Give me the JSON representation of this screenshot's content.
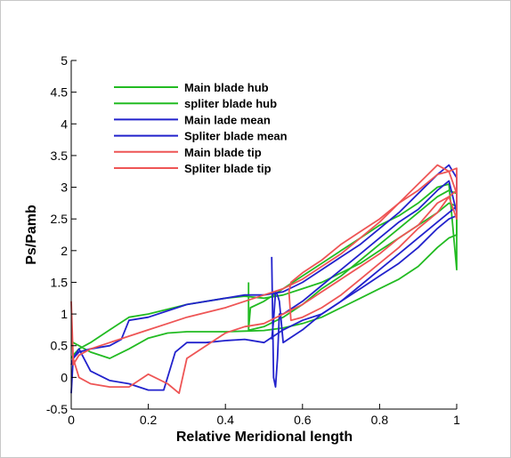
{
  "chart_data": {
    "type": "line",
    "title": "",
    "xlabel": "Relative Meridional length",
    "ylabel": "Ps/Pamb",
    "xlim": [
      0,
      1
    ],
    "ylim": [
      -0.5,
      5
    ],
    "xticks": [
      0,
      0.2,
      0.4,
      0.6,
      0.8,
      1
    ],
    "xtick_labels": [
      "0",
      "0.2",
      "0.4",
      "0.6",
      "0.8",
      "1"
    ],
    "yticks": [
      -0.5,
      0,
      0.5,
      1,
      1.5,
      2,
      2.5,
      3,
      3.5,
      4,
      4.5,
      5
    ],
    "ytick_labels": [
      "-0.5",
      "0",
      "0.5",
      "1",
      "1.5",
      "2",
      "2.5",
      "3",
      "3.5",
      "4",
      "4.5",
      "5"
    ],
    "grid": false,
    "legend": "top-left",
    "series": [
      {
        "name": "Main blade hub",
        "color": "#22bb22",
        "x": [
          0,
          0.005,
          0.02,
          0.05,
          0.1,
          0.15,
          0.2,
          0.25,
          0.3,
          0.35,
          0.4,
          0.45,
          0.5,
          0.55,
          0.6,
          0.65,
          0.7,
          0.75,
          0.8,
          0.85,
          0.9,
          0.95,
          0.98,
          1,
          1,
          0.98,
          0.95,
          0.9,
          0.85,
          0.8,
          0.75,
          0.7,
          0.65,
          0.6,
          0.55,
          0.5,
          0.45,
          0.4,
          0.3,
          0.2,
          0.15,
          0.1,
          0.05,
          0.02,
          0.005,
          0
        ],
        "y": [
          0.5,
          0.55,
          0.5,
          0.4,
          0.3,
          0.45,
          0.62,
          0.7,
          0.72,
          0.72,
          0.72,
          0.73,
          0.74,
          0.78,
          0.85,
          0.95,
          1.1,
          1.25,
          1.4,
          1.55,
          1.75,
          2.05,
          2.2,
          2.25,
          2.7,
          2.75,
          2.6,
          2.4,
          2.2,
          2.0,
          1.8,
          1.65,
          1.5,
          1.4,
          1.3,
          1.25,
          1.28,
          1.25,
          1.15,
          1.0,
          0.95,
          0.75,
          0.55,
          0.45,
          0.35,
          0.3
        ]
      },
      {
        "name": "spliter blade hub",
        "color": "#22bb22",
        "x": [
          0.46,
          0.46,
          0.465,
          0.5,
          0.55,
          0.6,
          0.65,
          0.7,
          0.75,
          0.8,
          0.85,
          0.9,
          0.95,
          0.98,
          1,
          1,
          0.98,
          0.95,
          0.9,
          0.85,
          0.8,
          0.75,
          0.7,
          0.65,
          0.6,
          0.55,
          0.5,
          0.465,
          0.46
        ],
        "y": [
          1.5,
          0.75,
          1.1,
          1.2,
          1.4,
          1.6,
          1.8,
          2.0,
          2.2,
          2.4,
          2.55,
          2.75,
          3.0,
          3.05,
          1.7,
          2.9,
          2.95,
          2.85,
          2.6,
          2.35,
          2.1,
          1.85,
          1.6,
          1.4,
          1.15,
          0.95,
          0.8,
          0.75,
          0.75
        ]
      },
      {
        "name": "Main lade mean",
        "color": "#2222cc",
        "x": [
          0,
          0.005,
          0.02,
          0.05,
          0.1,
          0.15,
          0.2,
          0.24,
          0.27,
          0.3,
          0.35,
          0.4,
          0.45,
          0.5,
          0.55,
          0.6,
          0.65,
          0.7,
          0.75,
          0.8,
          0.85,
          0.9,
          0.95,
          0.98,
          1,
          1,
          0.98,
          0.95,
          0.9,
          0.85,
          0.8,
          0.75,
          0.7,
          0.65,
          0.6,
          0.55,
          0.5,
          0.45,
          0.4,
          0.3,
          0.25,
          0.2,
          0.15,
          0.13,
          0.1,
          0.05,
          0.02,
          0.005,
          0
        ],
        "y": [
          -0.25,
          0.3,
          0.45,
          0.1,
          -0.05,
          -0.1,
          -0.2,
          -0.2,
          0.4,
          0.55,
          0.55,
          0.58,
          0.6,
          0.55,
          0.75,
          0.9,
          1.0,
          1.2,
          1.4,
          1.6,
          1.8,
          2.05,
          2.35,
          2.5,
          2.55,
          3.15,
          3.35,
          3.2,
          2.9,
          2.6,
          2.35,
          2.1,
          1.9,
          1.7,
          1.5,
          1.35,
          1.3,
          1.3,
          1.25,
          1.15,
          1.05,
          0.95,
          0.9,
          0.6,
          0.5,
          0.45,
          0.4,
          0.3,
          0.2
        ]
      },
      {
        "name": "Spliter blade mean",
        "color": "#2222cc",
        "x": [
          0.52,
          0.525,
          0.53,
          0.535,
          0.54,
          0.55,
          0.6,
          0.65,
          0.7,
          0.75,
          0.8,
          0.85,
          0.9,
          0.95,
          0.98,
          1,
          1,
          0.98,
          0.95,
          0.9,
          0.85,
          0.8,
          0.75,
          0.7,
          0.65,
          0.6,
          0.55,
          0.54,
          0.535,
          0.53,
          0.525,
          0.52
        ],
        "y": [
          1.9,
          0.0,
          -0.15,
          0.3,
          1.0,
          1.0,
          1.2,
          1.45,
          1.7,
          1.95,
          2.2,
          2.45,
          2.65,
          2.95,
          3.1,
          2.6,
          2.7,
          2.6,
          2.45,
          2.2,
          1.95,
          1.7,
          1.45,
          1.2,
          1.0,
          0.75,
          0.55,
          1.2,
          1.3,
          1.35,
          0.9,
          0.6
        ]
      },
      {
        "name": "Main blade tip",
        "color": "#ee5555",
        "x": [
          0,
          0.005,
          0.02,
          0.05,
          0.1,
          0.15,
          0.2,
          0.25,
          0.28,
          0.3,
          0.35,
          0.4,
          0.45,
          0.5,
          0.55,
          0.6,
          0.65,
          0.7,
          0.75,
          0.8,
          0.85,
          0.9,
          0.95,
          0.98,
          1,
          1,
          0.98,
          0.95,
          0.9,
          0.85,
          0.8,
          0.75,
          0.7,
          0.65,
          0.6,
          0.55,
          0.5,
          0.45,
          0.4,
          0.3,
          0.25,
          0.2,
          0.15,
          0.1,
          0.05,
          0.02,
          0.005,
          0
        ],
        "y": [
          1.2,
          0.3,
          0.0,
          -0.1,
          -0.15,
          -0.15,
          0.05,
          -0.1,
          -0.25,
          0.3,
          0.5,
          0.7,
          0.8,
          0.85,
          1.0,
          1.15,
          1.35,
          1.55,
          1.75,
          1.95,
          2.2,
          2.4,
          2.75,
          2.85,
          2.5,
          3.3,
          3.25,
          3.35,
          3.05,
          2.75,
          2.45,
          2.2,
          1.95,
          1.75,
          1.55,
          1.4,
          1.3,
          1.2,
          1.1,
          0.95,
          0.85,
          0.75,
          0.65,
          0.55,
          0.45,
          0.35,
          0.2,
          1.2
        ]
      },
      {
        "name": "Spliter blade tip",
        "color": "#ee5555",
        "x": [
          0.565,
          0.57,
          0.6,
          0.65,
          0.7,
          0.75,
          0.8,
          0.85,
          0.9,
          0.95,
          0.98,
          1,
          1,
          0.98,
          0.95,
          0.9,
          0.85,
          0.8,
          0.75,
          0.7,
          0.65,
          0.6,
          0.57,
          0.565
        ],
        "y": [
          1.35,
          1.5,
          1.65,
          1.85,
          2.1,
          2.3,
          2.5,
          2.75,
          2.95,
          3.2,
          3.25,
          2.9,
          2.95,
          2.85,
          2.6,
          2.35,
          2.05,
          1.8,
          1.55,
          1.3,
          1.1,
          0.95,
          0.9,
          1.35
        ]
      }
    ]
  }
}
